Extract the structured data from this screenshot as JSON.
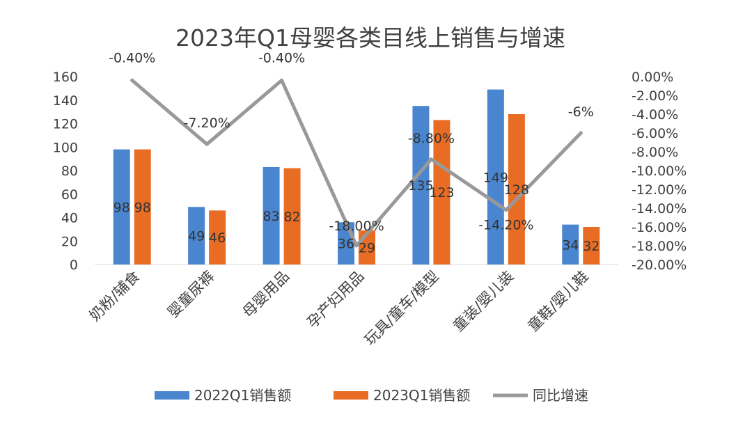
{
  "chart_data": {
    "type": "bar",
    "title": "2023年Q1母婴各类目线上销售与增速",
    "categories": [
      "奶粉/辅食",
      "婴童尿裤",
      "母婴用品",
      "孕产妇用品",
      "玩具/童车/模型",
      "童装/婴儿装",
      "童鞋/婴儿鞋"
    ],
    "series": [
      {
        "name": "2022Q1销售额",
        "type": "bar",
        "axis": "left",
        "color": "#4A86CF",
        "values": [
          98,
          49,
          83,
          36,
          135,
          149,
          34
        ]
      },
      {
        "name": "2023Q1销售额",
        "type": "bar",
        "axis": "right-bar",
        "color": "#E96C24",
        "values": [
          98,
          46,
          82,
          29,
          123,
          128,
          32
        ]
      },
      {
        "name": "同比增速",
        "type": "line",
        "axis": "right",
        "color": "#999999",
        "values": [
          -0.4,
          -7.2,
          -0.4,
          -18.0,
          -8.8,
          -14.2,
          -6.0
        ],
        "labels": [
          "-0.40%",
          "-7.20%",
          "-0.40%",
          "-18.00%",
          "-8.80%",
          "-14.20%",
          "-6%"
        ]
      }
    ],
    "ylim_left": [
      0,
      160
    ],
    "yticks_left": [
      "0",
      "20",
      "40",
      "60",
      "80",
      "100",
      "120",
      "140",
      "160"
    ],
    "ylim_right": [
      -20,
      0
    ],
    "yticks_right": [
      "-20.00%",
      "-18.00%",
      "-16.00%",
      "-14.00%",
      "-12.00%",
      "-10.00%",
      "-8.00%",
      "-6.00%",
      "-4.00%",
      "-2.00%",
      "0.00%"
    ],
    "grid": false,
    "legend": "bottom"
  }
}
